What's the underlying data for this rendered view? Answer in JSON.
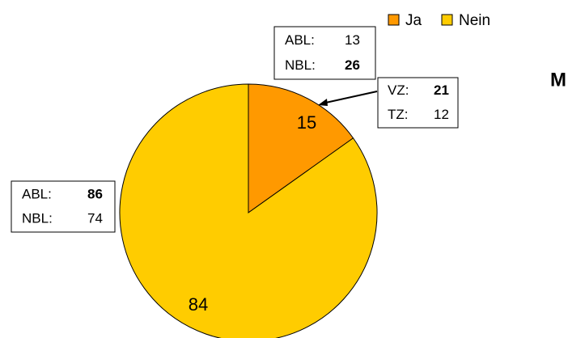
{
  "chart_data": {
    "type": "pie",
    "title": "M",
    "categories": [
      "Ja",
      "Nein"
    ],
    "values": [
      15,
      84
    ],
    "colors": [
      "#FF9900",
      "#FFCC00"
    ],
    "legend": "top",
    "annotations": [
      {
        "lines": [
          {
            "label": "ABL:",
            "value": 13,
            "bold": false
          },
          {
            "label": "NBL:",
            "value": 26,
            "bold": true
          }
        ]
      },
      {
        "lines": [
          {
            "label": "VZ:",
            "value": 21,
            "bold": true
          },
          {
            "label": "TZ:",
            "value": 12,
            "bold": false
          }
        ]
      },
      {
        "lines": [
          {
            "label": "ABL:",
            "value": 86,
            "bold": true
          },
          {
            "label": "NBL:",
            "value": 74,
            "bold": false
          }
        ]
      }
    ]
  }
}
